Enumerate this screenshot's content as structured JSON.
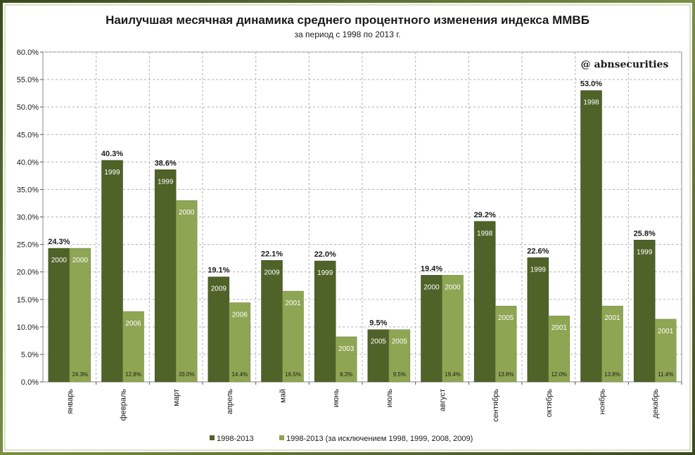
{
  "watermark": "@ abnsecurities",
  "chart_data": {
    "type": "bar",
    "title": "Наилучшая месячная динамика среднего процентного изменения индекса ММВБ",
    "subtitle": "за период с 1998 по 2013 г.",
    "categories": [
      "январь",
      "февраль",
      "март",
      "апрель",
      "май",
      "июнь",
      "июль",
      "август",
      "сентябрь",
      "октябрь",
      "ноябрь",
      "декабрь"
    ],
    "ylim": [
      0,
      60
    ],
    "y_ticks": [
      "0.0%",
      "5.0%",
      "10.0%",
      "15.0%",
      "20.0%",
      "25.0%",
      "30.0%",
      "35.0%",
      "40.0%",
      "45.0%",
      "50.0%",
      "55.0%",
      "60.0%"
    ],
    "grid": true,
    "legend_position": "bottom",
    "series": [
      {
        "name": "1998-2013",
        "color": "#4f6228",
        "values": [
          24.3,
          40.3,
          38.6,
          19.1,
          22.1,
          22.0,
          9.5,
          19.4,
          29.2,
          22.6,
          53.0,
          25.8
        ],
        "labels": [
          "24.3%",
          "40.3%",
          "38.6%",
          "19.1%",
          "22.1%",
          "22.0%",
          "9.5%",
          "19.4%",
          "29.2%",
          "22.6%",
          "53.0%",
          "25.8%"
        ],
        "years": [
          "2000",
          "1999",
          "1999",
          "2009",
          "2009",
          "1999",
          "2005",
          "2000",
          "1998",
          "1999",
          "1998",
          "1999"
        ]
      },
      {
        "name": "1998-2013 (за исключением  1998, 1999, 2008, 2009)",
        "color": "#8ea553",
        "values": [
          24.3,
          12.8,
          33.0,
          14.4,
          16.5,
          8.2,
          9.5,
          19.4,
          13.8,
          12.0,
          13.8,
          11.4
        ],
        "labels": [
          "24.3%",
          "12.8%",
          "33.0%",
          "14.4%",
          "16.5%",
          "8.2%",
          "9.5%",
          "19.4%",
          "13.8%",
          "12.0%",
          "13.8%",
          "11.4%"
        ],
        "years": [
          "2000",
          "2006",
          "2000",
          "2006",
          "2001",
          "2003",
          "2005",
          "2000",
          "2005",
          "2001",
          "2001",
          "2001"
        ]
      }
    ]
  }
}
